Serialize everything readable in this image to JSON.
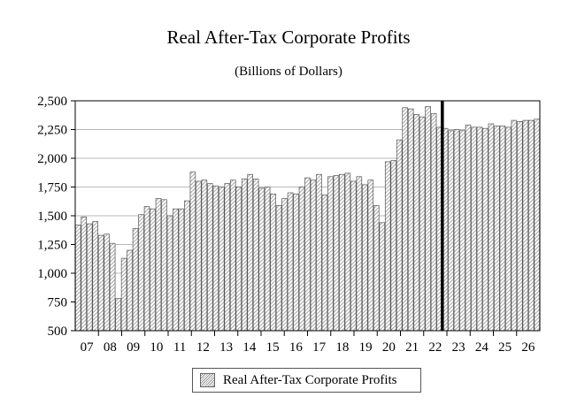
{
  "chart_data": {
    "type": "bar",
    "title": "Real After-Tax Corporate Profits",
    "subtitle": "(Billions of Dollars)",
    "ylim": [
      500,
      2500
    ],
    "yticks": [
      500,
      750,
      1000,
      1250,
      1500,
      1750,
      2000,
      2250,
      2500
    ],
    "ytick_labels": [
      "500",
      "750",
      "1,000",
      "1,250",
      "1,500",
      "1,750",
      "2,000",
      "2,250",
      "2,500"
    ],
    "year_labels": [
      "07",
      "08",
      "09",
      "10",
      "11",
      "12",
      "13",
      "14",
      "15",
      "16",
      "17",
      "18",
      "19",
      "20",
      "21",
      "22",
      "23",
      "24",
      "25",
      "26"
    ],
    "forecast_start_index": 64,
    "legend": "Real After-Tax Corporate Profits",
    "series": [
      {
        "name": "Real After-Tax Corporate Profits",
        "values": [
          1420,
          1490,
          1430,
          1450,
          1330,
          1340,
          1260,
          780,
          1130,
          1200,
          1390,
          1510,
          1580,
          1560,
          1650,
          1640,
          1500,
          1560,
          1560,
          1630,
          1880,
          1800,
          1810,
          1780,
          1760,
          1750,
          1780,
          1810,
          1750,
          1820,
          1860,
          1820,
          1740,
          1750,
          1690,
          1590,
          1650,
          1700,
          1690,
          1750,
          1830,
          1810,
          1860,
          1680,
          1840,
          1850,
          1860,
          1870,
          1800,
          1840,
          1770,
          1810,
          1590,
          1440,
          1970,
          1980,
          2160,
          2440,
          2430,
          2380,
          2360,
          2450,
          2390,
          2270,
          2260,
          2240,
          2250,
          2240,
          2290,
          2270,
          2270,
          2260,
          2300,
          2280,
          2280,
          2270,
          2330,
          2320,
          2330,
          2330,
          2340
        ]
      }
    ]
  }
}
